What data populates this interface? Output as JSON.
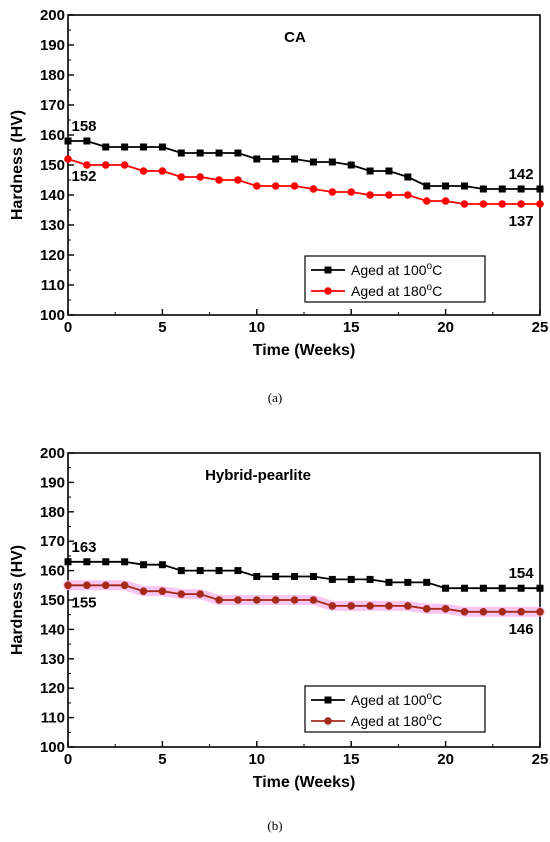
{
  "chart_data": [
    {
      "type": "line",
      "title": "CA",
      "xlabel": "Time (Weeks)",
      "ylabel": "Hardness (HV)",
      "xlim": [
        0,
        25
      ],
      "ylim": [
        100,
        200
      ],
      "xticks": [
        0,
        5,
        10,
        15,
        20,
        25
      ],
      "yticks": [
        100,
        110,
        120,
        130,
        140,
        150,
        160,
        170,
        180,
        190,
        200
      ],
      "grid": false,
      "legend_position": "bottom-right",
      "x": [
        0,
        1,
        2,
        3,
        4,
        5,
        6,
        7,
        8,
        9,
        10,
        11,
        12,
        13,
        14,
        15,
        16,
        17,
        18,
        19,
        20,
        21,
        22,
        23,
        24,
        25
      ],
      "series": [
        {
          "name": "Aged at 100°C",
          "color": "#000000",
          "marker": "square",
          "values": [
            158,
            158,
            156,
            156,
            156,
            156,
            154,
            154,
            154,
            154,
            152,
            152,
            152,
            151,
            151,
            150,
            148,
            148,
            146,
            143,
            143,
            143,
            142,
            142,
            142,
            142
          ]
        },
        {
          "name": "Aged at 180°C",
          "color": "#ff0000",
          "marker": "circle",
          "band": false,
          "values": [
            152,
            150,
            150,
            150,
            148,
            148,
            146,
            146,
            145,
            145,
            143,
            143,
            143,
            142,
            141,
            141,
            140,
            140,
            140,
            138,
            138,
            137,
            137,
            137,
            137,
            137
          ]
        }
      ],
      "annotations": [
        {
          "text": "158",
          "x": 0,
          "y": 158,
          "pos": "above"
        },
        {
          "text": "152",
          "x": 0,
          "y": 152,
          "pos": "below"
        },
        {
          "text": "142",
          "x": 24,
          "y": 142,
          "pos": "above"
        },
        {
          "text": "137",
          "x": 24,
          "y": 137,
          "pos": "below"
        }
      ],
      "caption": "(a)"
    },
    {
      "type": "line",
      "title": "Hybrid-pearlite",
      "xlabel": "Time (Weeks)",
      "ylabel": "Hardness (HV)",
      "xlim": [
        0,
        25
      ],
      "ylim": [
        100,
        200
      ],
      "xticks": [
        0,
        5,
        10,
        15,
        20,
        25
      ],
      "yticks": [
        100,
        110,
        120,
        130,
        140,
        150,
        160,
        170,
        180,
        190,
        200
      ],
      "grid": false,
      "legend_position": "bottom-right",
      "x": [
        0,
        1,
        2,
        3,
        4,
        5,
        6,
        7,
        8,
        9,
        10,
        11,
        12,
        13,
        14,
        15,
        16,
        17,
        18,
        19,
        20,
        21,
        22,
        23,
        24,
        25
      ],
      "series": [
        {
          "name": "Aged at 100°C",
          "color": "#000000",
          "marker": "square",
          "values": [
            163,
            163,
            163,
            163,
            162,
            162,
            160,
            160,
            160,
            160,
            158,
            158,
            158,
            158,
            157,
            157,
            157,
            156,
            156,
            156,
            154,
            154,
            154,
            154,
            154,
            154
          ]
        },
        {
          "name": "Aged at 180°C",
          "color": "#a52a1a",
          "marker": "circle",
          "band": true,
          "band_color": "#f6b8ee",
          "values": [
            155,
            155,
            155,
            155,
            153,
            153,
            152,
            152,
            150,
            150,
            150,
            150,
            150,
            150,
            148,
            148,
            148,
            148,
            148,
            147,
            147,
            146,
            146,
            146,
            146,
            146
          ]
        }
      ],
      "annotations": [
        {
          "text": "163",
          "x": 0,
          "y": 163,
          "pos": "above"
        },
        {
          "text": "155",
          "x": 0,
          "y": 155,
          "pos": "below"
        },
        {
          "text": "154",
          "x": 24,
          "y": 154,
          "pos": "above"
        },
        {
          "text": "146",
          "x": 24,
          "y": 146,
          "pos": "below"
        }
      ],
      "caption": "(b)"
    }
  ]
}
